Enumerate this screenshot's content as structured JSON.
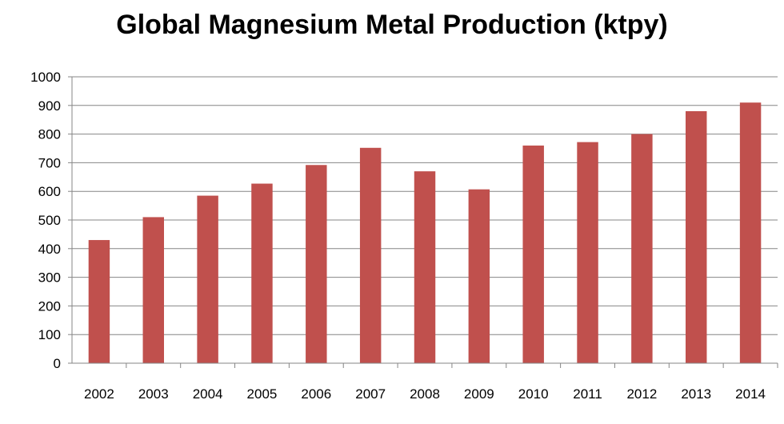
{
  "chart_data": {
    "type": "bar",
    "title": "Global Magnesium Metal Production (ktpy)",
    "categories": [
      "2002",
      "2003",
      "2004",
      "2005",
      "2006",
      "2007",
      "2008",
      "2009",
      "2010",
      "2011",
      "2012",
      "2013",
      "2014"
    ],
    "values": [
      430,
      510,
      585,
      627,
      692,
      752,
      670,
      607,
      760,
      772,
      800,
      880,
      910
    ],
    "xlabel": "",
    "ylabel": "",
    "ylim": [
      0,
      1000
    ],
    "yticks": [
      "0",
      "100",
      "200",
      "300",
      "400",
      "500",
      "600",
      "700",
      "800",
      "900",
      "1000"
    ],
    "grid": true,
    "legend": "none",
    "bar_color": "#c0504d",
    "grid_color": "#868686"
  }
}
